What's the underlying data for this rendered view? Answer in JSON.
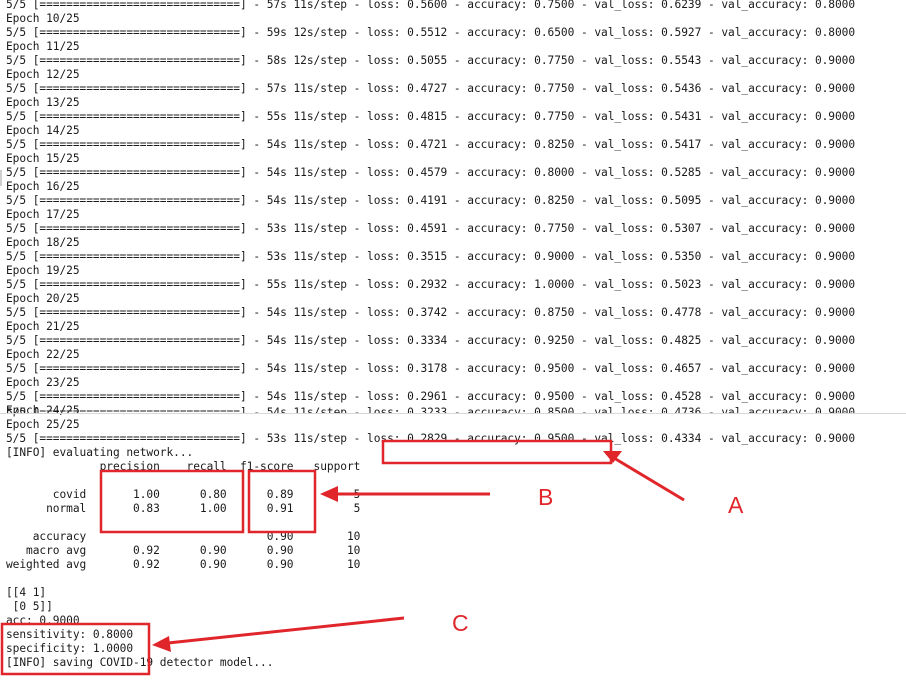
{
  "terminal": {
    "lines": [
      "5/5 [==============================] - 57s 11s/step - loss: 0.5600 - accuracy: 0.7500 - val_loss: 0.6239 - val_accuracy: 0.8000",
      "Epoch 10/25",
      "5/5 [==============================] - 59s 12s/step - loss: 0.5512 - accuracy: 0.6500 - val_loss: 0.5927 - val_accuracy: 0.8000",
      "Epoch 11/25",
      "5/5 [==============================] - 58s 12s/step - loss: 0.5055 - accuracy: 0.7750 - val_loss: 0.5543 - val_accuracy: 0.9000",
      "Epoch 12/25",
      "5/5 [==============================] - 57s 11s/step - loss: 0.4727 - accuracy: 0.7750 - val_loss: 0.5436 - val_accuracy: 0.9000",
      "Epoch 13/25",
      "5/5 [==============================] - 55s 11s/step - loss: 0.4815 - accuracy: 0.7750 - val_loss: 0.5431 - val_accuracy: 0.9000",
      "Epoch 14/25",
      "5/5 [==============================] - 54s 11s/step - loss: 0.4721 - accuracy: 0.8250 - val_loss: 0.5417 - val_accuracy: 0.9000",
      "Epoch 15/25",
      "5/5 [==============================] - 54s 11s/step - loss: 0.4579 - accuracy: 0.8000 - val_loss: 0.5285 - val_accuracy: 0.9000",
      "Epoch 16/25",
      "5/5 [==============================] - 54s 11s/step - loss: 0.4191 - accuracy: 0.8250 - val_loss: 0.5095 - val_accuracy: 0.9000",
      "Epoch 17/25",
      "5/5 [==============================] - 53s 11s/step - loss: 0.4591 - accuracy: 0.7750 - val_loss: 0.5307 - val_accuracy: 0.9000",
      "Epoch 18/25",
      "5/5 [==============================] - 53s 11s/step - loss: 0.3515 - accuracy: 0.9000 - val_loss: 0.5350 - val_accuracy: 0.9000",
      "Epoch 19/25",
      "5/5 [==============================] - 55s 11s/step - loss: 0.2932 - accuracy: 1.0000 - val_loss: 0.5023 - val_accuracy: 0.9000",
      "Epoch 20/25",
      "5/5 [==============================] - 54s 11s/step - loss: 0.3742 - accuracy: 0.8750 - val_loss: 0.4778 - val_accuracy: 0.9000",
      "Epoch 21/25",
      "5/5 [==============================] - 54s 11s/step - loss: 0.3334 - accuracy: 0.9250 - val_loss: 0.4825 - val_accuracy: 0.9000",
      "Epoch 22/25",
      "5/5 [==============================] - 54s 11s/step - loss: 0.3178 - accuracy: 0.9500 - val_loss: 0.4657 - val_accuracy: 0.9000",
      "Epoch 23/25",
      "5/5 [==============================] - 54s 11s/step - loss: 0.2961 - accuracy: 0.9500 - val_loss: 0.4528 - val_accuracy: 0.9000",
      "Epoch 24/25",
      "5/5 [==============================] - 54s 11s/step - loss: 0.3233 - accuracy: 0.8500 - val_loss: 0.4736 - val_accuracy: 0.9000",
      "Epoch 25/25",
      "5/5 [==============================] - 53s 11s/step - loss: 0.2829 - accuracy: 0.9500 - val_loss: 0.4334 - val_accuracy: 0.9000",
      "[INFO] evaluating network...",
      "              precision    recall  f1-score   support",
      "",
      "       covid       1.00      0.80      0.89         5",
      "      normal       0.83      1.00      0.91         5",
      "",
      "    accuracy                           0.90        10",
      "   macro avg       0.92      0.90      0.90        10",
      "weighted avg       0.92      0.90      0.90        10",
      "",
      "[[4 1]",
      " [0 5]]",
      "acc: 0.9000",
      "sensitivity: 0.8000",
      "specificity: 1.0000",
      "[INFO] saving COVID-19 detector model..."
    ]
  },
  "annotations": {
    "color": "#e0262b",
    "labels": [
      "A",
      "B",
      "C"
    ]
  }
}
